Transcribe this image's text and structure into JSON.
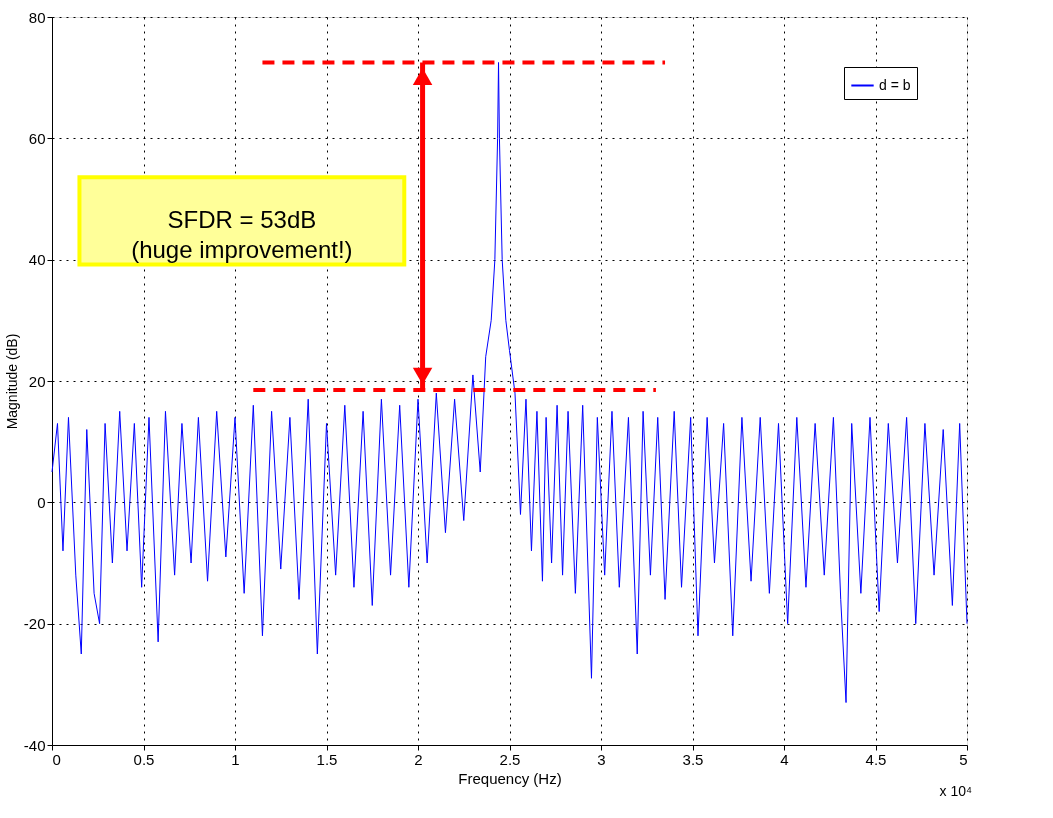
{
  "chart_data": {
    "type": "line",
    "xlabel": "Frequency (Hz)",
    "ylabel": "Magnitude (dB)",
    "xlim": [
      0,
      5
    ],
    "ylim": [
      -40,
      80
    ],
    "xticks": [
      0,
      0.5,
      1,
      1.5,
      2,
      2.5,
      3,
      3.5,
      4,
      4.5,
      5
    ],
    "yticks": [
      -40,
      -20,
      0,
      20,
      40,
      60,
      80
    ],
    "grid": true,
    "legend": "top right",
    "marker": "none",
    "annotations": [
      "SFDR = 53dB\n(huge improvement!)",
      "x 10⁴"
    ],
    "series": [
      {
        "name": "d = b",
        "color": "#0000ff",
        "line_style": "solid",
        "x": [
          0,
          0.03,
          0.06,
          0.09,
          0.13,
          0.16,
          0.19,
          0.23,
          0.26,
          0.29,
          0.33,
          0.37,
          0.41,
          0.45,
          0.49,
          0.53,
          0.58,
          0.62,
          0.67,
          0.71,
          0.76,
          0.8,
          0.85,
          0.9,
          0.95,
          1,
          1.05,
          1.1,
          1.15,
          1.2,
          1.25,
          1.3,
          1.35,
          1.4,
          1.45,
          1.5,
          1.55,
          1.6,
          1.65,
          1.7,
          1.75,
          1.8,
          1.85,
          1.9,
          1.95,
          2,
          2.05,
          2.1,
          2.15,
          2.2,
          2.25,
          2.3,
          2.34,
          2.37,
          2.4,
          2.42,
          2.435,
          2.44,
          2.445,
          2.46,
          2.48,
          2.5,
          2.53,
          2.56,
          2.59,
          2.62,
          2.65,
          2.68,
          2.7,
          2.73,
          2.76,
          2.79,
          2.82,
          2.86,
          2.9,
          2.948,
          2.98,
          3.02,
          3.06,
          3.1,
          3.15,
          3.198,
          3.23,
          3.27,
          3.31,
          3.35,
          3.4,
          3.44,
          3.49,
          3.53,
          3.58,
          3.62,
          3.67,
          3.72,
          3.77,
          3.82,
          3.87,
          3.92,
          3.97,
          4.02,
          4.07,
          4.12,
          4.17,
          4.22,
          4.27,
          4.31,
          4.339,
          4.37,
          4.42,
          4.47,
          4.52,
          4.57,
          4.62,
          4.67,
          4.72,
          4.77,
          4.82,
          4.87,
          4.92,
          4.96,
          5
        ],
        "values": [
          5,
          13,
          -8,
          14,
          -12,
          -25,
          12,
          -15,
          -20,
          13,
          -10,
          15,
          -8,
          13,
          -14,
          14,
          -23,
          15,
          -12,
          13,
          -10,
          14,
          -13,
          15,
          -9,
          14,
          -15,
          16,
          -22,
          15,
          -11,
          14,
          -16,
          17,
          -25,
          13,
          -12,
          16,
          -14,
          15,
          -17,
          17,
          -12,
          16,
          -14,
          17,
          -10,
          18,
          -5,
          17,
          -3,
          21,
          5,
          24,
          30,
          40,
          60,
          72.5,
          60,
          40,
          30,
          25,
          18,
          -2,
          17,
          -8,
          15,
          -13,
          14,
          -10,
          16,
          -12,
          15,
          -15,
          16,
          -29,
          14,
          -12,
          15,
          -14,
          14,
          -25,
          15,
          -12,
          14,
          -16,
          15,
          -14,
          14,
          -22,
          14,
          -10,
          13,
          -22,
          14,
          -13,
          14,
          -15,
          13,
          -20,
          14,
          -14,
          13,
          -12,
          14,
          -16,
          -33,
          13,
          -15,
          14,
          -18,
          13,
          -10,
          14,
          -20,
          13,
          -12,
          12,
          -17,
          13,
          -20
        ]
      },
      {
        "color": "#ff0000",
        "line_style": "dashed",
        "x": [
          1.15,
          3.35
        ],
        "values": [
          72.5,
          72.5
        ]
      },
      {
        "color": "#ff0000",
        "line_style": "dashed",
        "x": [
          1.1,
          3.3
        ],
        "values": [
          18.5,
          18.5
        ]
      }
    ]
  }
}
